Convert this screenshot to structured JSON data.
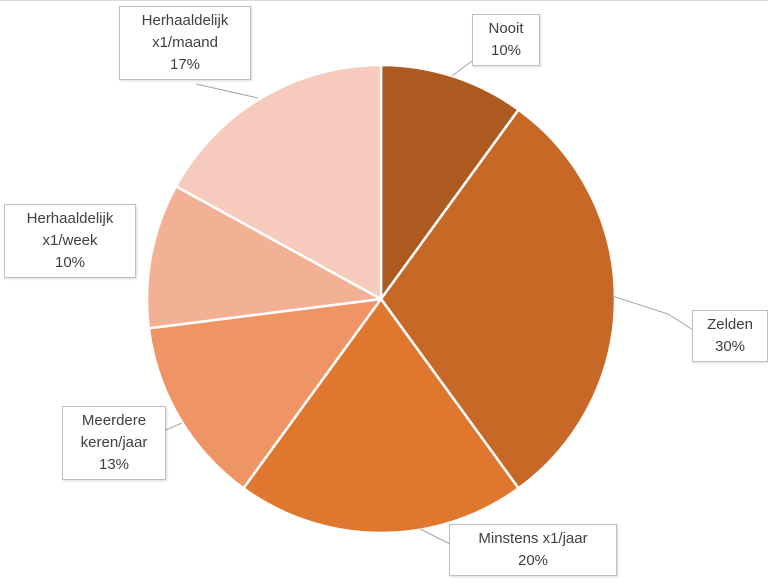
{
  "chart_data": {
    "type": "pie",
    "start_angle_deg": 0,
    "direction": "clockwise",
    "slices": [
      {
        "label_lines": [
          "Nooit"
        ],
        "value": 10,
        "percent_label": "10%",
        "color": "#ad5a20"
      },
      {
        "label_lines": [
          "Zelden"
        ],
        "value": 30,
        "percent_label": "30%",
        "color": "#c86827"
      },
      {
        "label_lines": [
          "Minstens x1/jaar"
        ],
        "value": 20,
        "percent_label": "20%",
        "color": "#e0772f"
      },
      {
        "label_lines": [
          "Meerdere",
          "keren/jaar"
        ],
        "value": 13,
        "percent_label": "13%",
        "color": "#ef9464"
      },
      {
        "label_lines": [
          "Herhaaldelijk",
          "x1/week"
        ],
        "value": 10,
        "percent_label": "10%",
        "color": "#f2b095"
      },
      {
        "label_lines": [
          "Herhaaldelijk",
          "x1/maand"
        ],
        "value": 17,
        "percent_label": "17%",
        "color": "#f6cabc"
      }
    ],
    "legend": "none",
    "data_labels": "outside with leader lines"
  }
}
